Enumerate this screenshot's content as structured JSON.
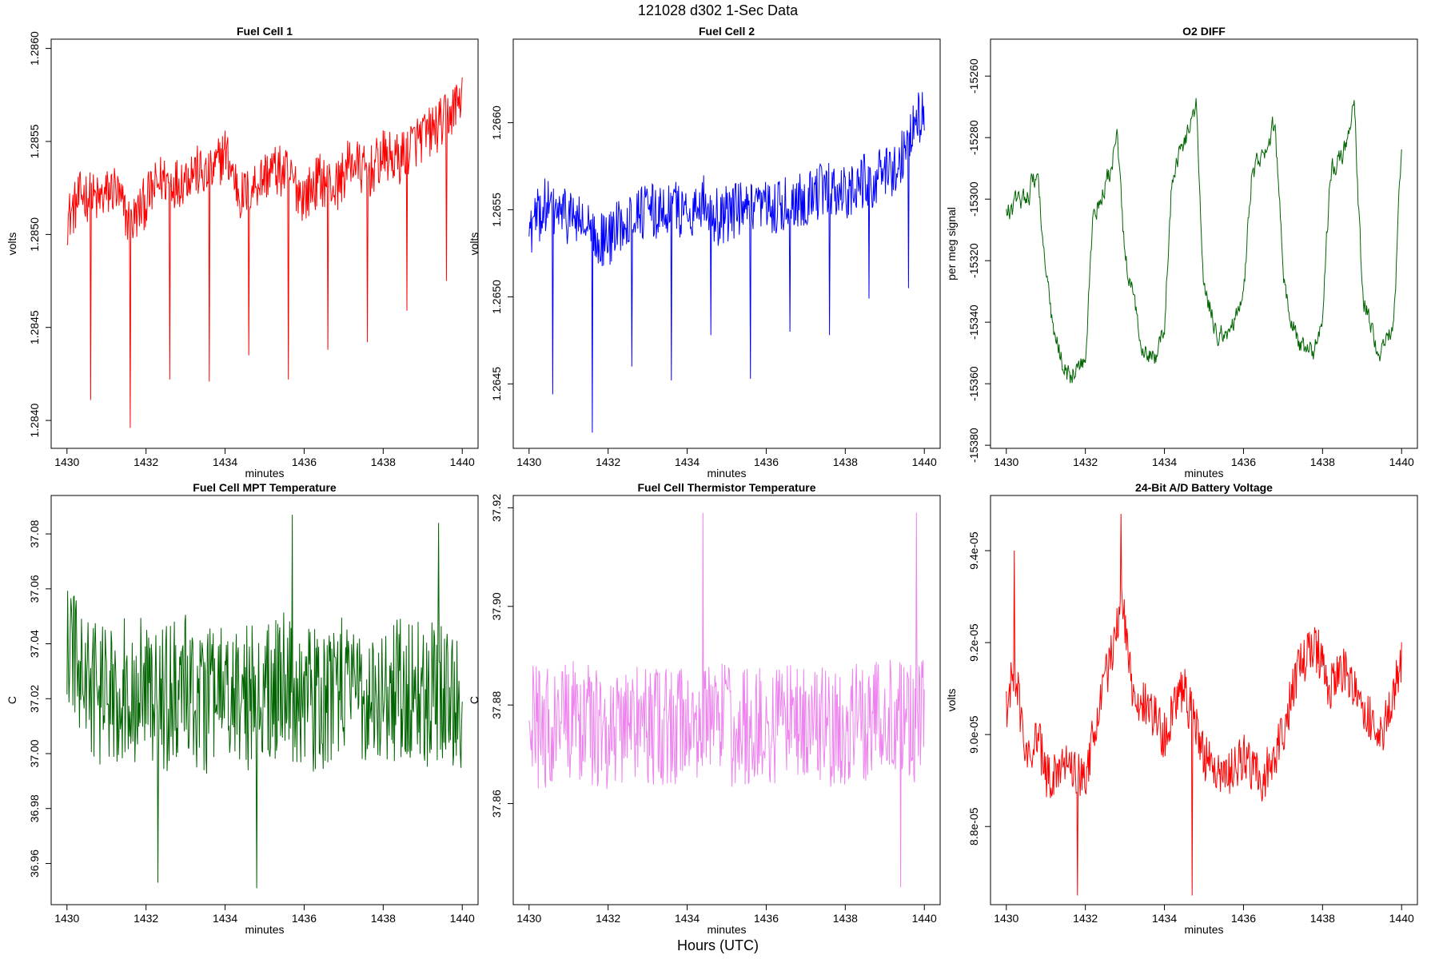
{
  "figure": {
    "title": "121028   d302   1-Sec Data",
    "x_caption": "Hours (UTC)"
  },
  "chart_data": [
    {
      "type": "line",
      "title": "Fuel Cell 1",
      "xlabel": "minutes",
      "ylabel": "volts",
      "xlim": [
        1429.6,
        1440.4
      ],
      "ylim": [
        1.28385,
        1.28605
      ],
      "xticks": [
        1430,
        1432,
        1434,
        1436,
        1438,
        1440
      ],
      "xtick_labels": [
        "1430",
        "1432",
        "1434",
        "1436",
        "1438",
        "1440"
      ],
      "yticks": [
        1.284,
        1.2845,
        1.285,
        1.2855,
        1.286
      ],
      "ytick_labels": [
        "1.2840",
        "1.2845",
        "1.2850",
        "1.2855",
        "1.2860"
      ],
      "color": "#ff0000",
      "x": [
        1430.0,
        1430.4,
        1430.8,
        1431.2,
        1431.6,
        1432.0,
        1432.4,
        1432.8,
        1433.2,
        1433.6,
        1434.0,
        1434.4,
        1434.8,
        1435.2,
        1435.6,
        1436.0,
        1436.4,
        1436.8,
        1437.2,
        1437.6,
        1438.0,
        1438.4,
        1438.8,
        1439.2,
        1439.6,
        1440.0
      ],
      "values": [
        1.28508,
        1.28522,
        1.28518,
        1.28525,
        1.28505,
        1.28518,
        1.2853,
        1.28528,
        1.28535,
        1.2853,
        1.28545,
        1.2852,
        1.28528,
        1.28535,
        1.28532,
        1.2852,
        1.2853,
        1.28525,
        1.2854,
        1.28532,
        1.28542,
        1.2854,
        1.2855,
        1.28555,
        1.28562,
        1.28575
      ],
      "annotations": [
        {
          "x": 1430.6,
          "y": 1.28411
        },
        {
          "x": 1431.6,
          "y": 1.28396
        },
        {
          "x": 1432.6,
          "y": 1.28422
        },
        {
          "x": 1433.6,
          "y": 1.28421
        },
        {
          "x": 1434.6,
          "y": 1.28435
        },
        {
          "x": 1435.6,
          "y": 1.28422
        },
        {
          "x": 1436.6,
          "y": 1.28438
        },
        {
          "x": 1437.6,
          "y": 1.28442
        },
        {
          "x": 1438.6,
          "y": 1.28459
        },
        {
          "x": 1439.6,
          "y": 1.28475
        }
      ]
    },
    {
      "type": "line",
      "title": "Fuel Cell 2",
      "xlabel": "minutes",
      "ylabel": "volts",
      "xlim": [
        1429.6,
        1440.4
      ],
      "ylim": [
        1.26413,
        1.26648
      ],
      "xticks": [
        1430,
        1432,
        1434,
        1436,
        1438,
        1440
      ],
      "xtick_labels": [
        "1430",
        "1432",
        "1434",
        "1436",
        "1438",
        "1440"
      ],
      "yticks": [
        1.2645,
        1.265,
        1.2655,
        1.266
      ],
      "ytick_labels": [
        "1.2645",
        "1.2650",
        "1.2655",
        "1.2660"
      ],
      "color": "#0000ff",
      "x": [
        1430.0,
        1430.4,
        1430.8,
        1431.2,
        1431.6,
        1432.0,
        1432.4,
        1432.8,
        1433.2,
        1433.6,
        1434.0,
        1434.4,
        1434.8,
        1435.2,
        1435.6,
        1436.0,
        1436.4,
        1436.8,
        1437.2,
        1437.6,
        1438.0,
        1438.4,
        1438.8,
        1439.2,
        1439.6,
        1440.0
      ],
      "values": [
        1.26538,
        1.26552,
        1.26548,
        1.26545,
        1.26535,
        1.26532,
        1.26545,
        1.2655,
        1.26548,
        1.26552,
        1.26548,
        1.26555,
        1.26545,
        1.2655,
        1.26548,
        1.2655,
        1.26552,
        1.26555,
        1.2656,
        1.26562,
        1.2656,
        1.26565,
        1.26568,
        1.26572,
        1.2659,
        1.2661
      ],
      "annotations": [
        {
          "x": 1430.6,
          "y": 1.26444
        },
        {
          "x": 1431.6,
          "y": 1.26422
        },
        {
          "x": 1432.6,
          "y": 1.2646
        },
        {
          "x": 1433.6,
          "y": 1.26452
        },
        {
          "x": 1434.6,
          "y": 1.26478
        },
        {
          "x": 1435.6,
          "y": 1.26453
        },
        {
          "x": 1436.6,
          "y": 1.2648
        },
        {
          "x": 1437.6,
          "y": 1.26478
        },
        {
          "x": 1438.6,
          "y": 1.26499
        },
        {
          "x": 1439.6,
          "y": 1.26505
        }
      ]
    },
    {
      "type": "line",
      "title": "O2 DIFF",
      "xlabel": "minutes",
      "ylabel": "per meg signal",
      "xlim": [
        1429.6,
        1440.4
      ],
      "ylim": [
        -15381,
        -15248
      ],
      "xticks": [
        1430,
        1432,
        1434,
        1436,
        1438,
        1440
      ],
      "xtick_labels": [
        "1430",
        "1432",
        "1434",
        "1436",
        "1438",
        "1440"
      ],
      "yticks": [
        -15380,
        -15360,
        -15340,
        -15320,
        -15300,
        -15280,
        -15260
      ],
      "ytick_labels": [
        "-15380",
        "-15360",
        "-15340",
        "-15320",
        "-15300",
        "-15280",
        "-15260"
      ],
      "color": "#006400",
      "x": [
        1430.0,
        1430.4,
        1430.8,
        1431.0,
        1431.2,
        1431.6,
        1432.0,
        1432.2,
        1432.6,
        1432.8,
        1433.0,
        1433.4,
        1433.8,
        1434.0,
        1434.2,
        1434.6,
        1434.8,
        1435.0,
        1435.4,
        1435.8,
        1436.0,
        1436.2,
        1436.6,
        1436.8,
        1437.0,
        1437.4,
        1437.8,
        1438.0,
        1438.2,
        1438.6,
        1438.8,
        1439.0,
        1439.4,
        1439.8,
        1440.0
      ],
      "values": [
        -15305,
        -15300,
        -15292,
        -15325,
        -15345,
        -15358,
        -15352,
        -15305,
        -15292,
        -15280,
        -15320,
        -15345,
        -15352,
        -15340,
        -15290,
        -15278,
        -15270,
        -15330,
        -15345,
        -15340,
        -15332,
        -15292,
        -15285,
        -15275,
        -15325,
        -15348,
        -15350,
        -15338,
        -15290,
        -15282,
        -15268,
        -15330,
        -15350,
        -15342,
        -15282
      ]
    },
    {
      "type": "line",
      "title": "Fuel Cell MPT Temperature",
      "xlabel": "minutes",
      "ylabel": "C",
      "xlim": [
        1429.6,
        1440.4
      ],
      "ylim": [
        36.945,
        37.094
      ],
      "xticks": [
        1430,
        1432,
        1434,
        1436,
        1438,
        1440
      ],
      "xtick_labels": [
        "1430",
        "1432",
        "1434",
        "1436",
        "1438",
        "1440"
      ],
      "yticks": [
        36.96,
        36.98,
        37.0,
        37.02,
        37.04,
        37.06,
        37.08
      ],
      "ytick_labels": [
        "36.96",
        "36.98",
        "37.00",
        "37.02",
        "37.04",
        "37.06",
        "37.08"
      ],
      "color": "#006400",
      "x": [
        1430.0,
        1430.5,
        1431.0,
        1431.5,
        1432.0,
        1432.5,
        1433.0,
        1433.5,
        1434.0,
        1434.5,
        1435.0,
        1435.5,
        1436.0,
        1436.5,
        1437.0,
        1437.5,
        1438.0,
        1438.5,
        1439.0,
        1439.5,
        1440.0
      ],
      "values": [
        37.04,
        37.025,
        37.02,
        37.025,
        37.022,
        37.02,
        37.025,
        37.018,
        37.022,
        37.02,
        37.022,
        37.025,
        37.02,
        37.018,
        37.025,
        37.022,
        37.02,
        37.025,
        37.02,
        37.022,
        37.018
      ],
      "annotations": [
        {
          "x": 1432.3,
          "y": 36.953
        },
        {
          "x": 1434.8,
          "y": 36.951
        },
        {
          "x": 1435.7,
          "y": 37.087
        },
        {
          "x": 1439.4,
          "y": 37.084
        }
      ]
    },
    {
      "type": "line",
      "title": "Fuel Cell Thermistor Temperature",
      "xlabel": "minutes",
      "ylabel": "C",
      "xlim": [
        1429.6,
        1440.4
      ],
      "ylim": [
        37.8395,
        37.9225
      ],
      "xticks": [
        1430,
        1432,
        1434,
        1436,
        1438,
        1440
      ],
      "xtick_labels": [
        "1430",
        "1432",
        "1434",
        "1436",
        "1438",
        "1440"
      ],
      "yticks": [
        37.86,
        37.88,
        37.9,
        37.92
      ],
      "ytick_labels": [
        "37.86",
        "37.88",
        "37.90",
        "37.92"
      ],
      "color": "#ee82ee",
      "x": [
        1430.0,
        1430.5,
        1431.0,
        1431.5,
        1432.0,
        1432.5,
        1433.0,
        1433.5,
        1434.0,
        1434.5,
        1435.0,
        1435.5,
        1436.0,
        1436.5,
        1437.0,
        1437.5,
        1438.0,
        1438.5,
        1439.0,
        1439.5,
        1440.0
      ],
      "values": [
        37.876,
        37.875,
        37.877,
        37.876,
        37.875,
        37.877,
        37.876,
        37.875,
        37.876,
        37.877,
        37.876,
        37.875,
        37.876,
        37.877,
        37.876,
        37.875,
        37.876,
        37.877,
        37.878,
        37.876,
        37.877
      ],
      "annotations": [
        {
          "x": 1434.4,
          "y": 37.919
        },
        {
          "x": 1439.8,
          "y": 37.919
        },
        {
          "x": 1439.4,
          "y": 37.843
        }
      ]
    },
    {
      "type": "line",
      "title": "24-Bit A/D Battery Voltage",
      "xlabel": "minutes",
      "ylabel": "volts",
      "xlim": [
        1429.6,
        1440.4
      ],
      "ylim": [
        8.63e-05,
        9.52e-05
      ],
      "xticks": [
        1430,
        1432,
        1434,
        1436,
        1438,
        1440
      ],
      "xtick_labels": [
        "1430",
        "1432",
        "1434",
        "1436",
        "1438",
        "1440"
      ],
      "yticks": [
        8.8e-05,
        9e-05,
        9.2e-05,
        9.4e-05
      ],
      "ytick_labels": [
        "8.8e-05",
        "9.0e-05",
        "9.2e-05",
        "9.4e-05"
      ],
      "color": "#ff0000",
      "x": [
        1430.0,
        1430.2,
        1430.5,
        1430.8,
        1431.0,
        1431.5,
        1432.0,
        1432.3,
        1432.6,
        1432.9,
        1433.2,
        1433.6,
        1434.0,
        1434.5,
        1435.0,
        1435.5,
        1436.0,
        1436.5,
        1437.0,
        1437.4,
        1437.8,
        1438.2,
        1438.6,
        1439.0,
        1439.5,
        1440.0
      ],
      "values": [
        9.05e-05,
        9.15e-05,
        8.95e-05,
        9e-05,
        8.9e-05,
        8.95e-05,
        8.9e-05,
        9.05e-05,
        9.15e-05,
        9.3e-05,
        9.1e-05,
        9.05e-05,
        9e-05,
        9.1e-05,
        8.95e-05,
        8.9e-05,
        8.95e-05,
        8.9e-05,
        9e-05,
        9.15e-05,
        9.2e-05,
        9.1e-05,
        9.15e-05,
        9.05e-05,
        9e-05,
        9.15e-05
      ],
      "annotations": [
        {
          "x": 1430.2,
          "y": 9.4e-05
        },
        {
          "x": 1432.9,
          "y": 9.48e-05
        },
        {
          "x": 1431.8,
          "y": 8.65e-05
        },
        {
          "x": 1434.7,
          "y": 8.65e-05
        }
      ]
    }
  ]
}
